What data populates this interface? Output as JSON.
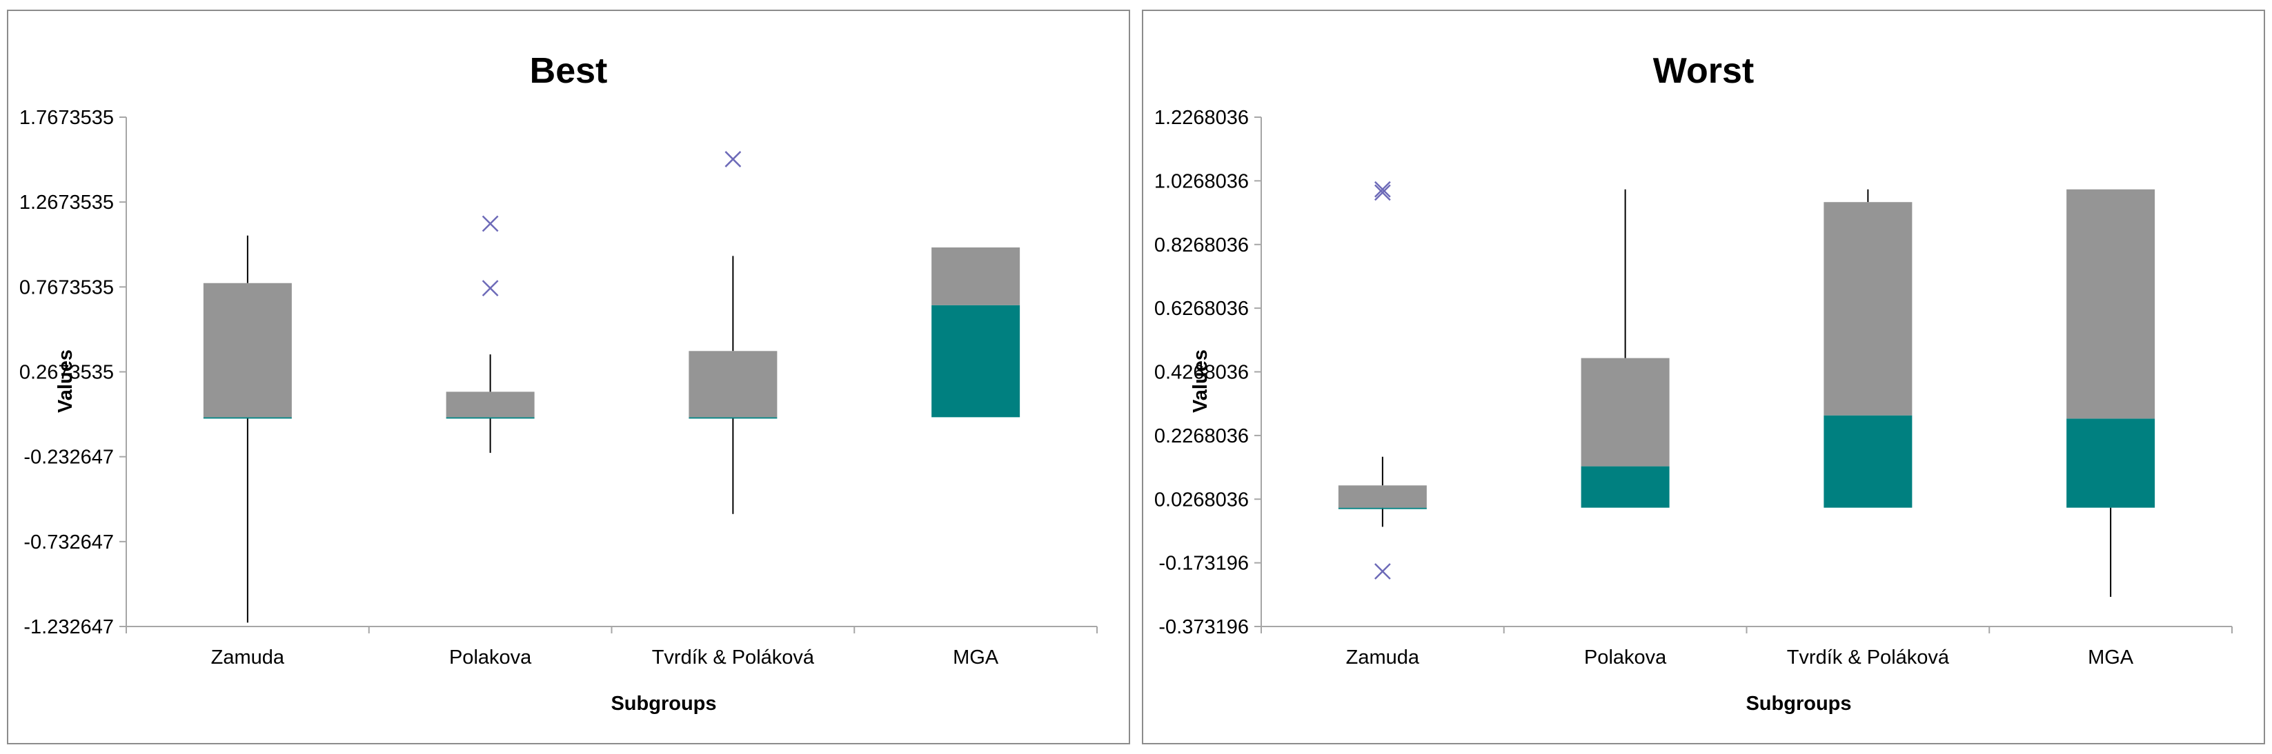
{
  "colors": {
    "upper_box": "#959595",
    "lower_box": "#008080",
    "outlier": "#6d6ab8",
    "whisker": "#000000",
    "axis": "#a6a6a6"
  },
  "chart_data": [
    {
      "type": "boxplot",
      "title": "Best",
      "xlabel": "Subgroups",
      "ylabel": "Values",
      "ylim": [
        -1.232647,
        1.7673535
      ],
      "ytick_labels": [
        "1.7673535",
        "1.2673535",
        "0.7673535",
        "0.2673535",
        "-0.232647",
        "-0.732647",
        "-1.232647"
      ],
      "categories": [
        "Zamuda",
        "Polakova",
        "Tvrdík & Poláková",
        "MGA"
      ],
      "boxes": [
        {
          "whisker_low": -1.21,
          "q1": 0.0,
          "median": 0.0,
          "q3": 0.79,
          "whisker_high": 1.07,
          "outliers": []
        },
        {
          "whisker_low": -0.21,
          "q1": 0.0,
          "median": 0.0,
          "q3": 0.15,
          "whisker_high": 0.37,
          "outliers": [
            1.14,
            0.76
          ]
        },
        {
          "whisker_low": -0.57,
          "q1": 0.0,
          "median": 0.0,
          "q3": 0.39,
          "whisker_high": 0.95,
          "outliers": [
            1.52
          ]
        },
        {
          "whisker_low": 0.0,
          "q1": 0.0,
          "median": 0.66,
          "q3": 1.0,
          "whisker_high": 1.0,
          "outliers": []
        }
      ]
    },
    {
      "type": "boxplot",
      "title": "Worst",
      "xlabel": "Subgroups",
      "ylabel": "Values",
      "ylim": [
        -0.373196,
        1.2268036
      ],
      "ytick_labels": [
        "1.2268036",
        "1.0268036",
        "0.8268036",
        "0.6268036",
        "0.4268036",
        "0.2268036",
        "0.0268036",
        "-0.173196",
        "-0.373196"
      ],
      "categories": [
        "Zamuda",
        "Polakova",
        "Tvrdík & Poláková",
        "MGA"
      ],
      "boxes": [
        {
          "whisker_low": -0.06,
          "q1": 0.0,
          "median": 0.0,
          "q3": 0.07,
          "whisker_high": 0.16,
          "outliers": [
            1.0,
            0.99,
            -0.2
          ]
        },
        {
          "whisker_low": 0.0,
          "q1": 0.0,
          "median": 0.13,
          "q3": 0.47,
          "whisker_high": 1.0,
          "outliers": []
        },
        {
          "whisker_low": 0.0,
          "q1": 0.0,
          "median": 0.29,
          "q3": 0.96,
          "whisker_high": 1.0,
          "outliers": []
        },
        {
          "whisker_low": -0.28,
          "q1": 0.0,
          "median": 0.28,
          "q3": 1.0,
          "whisker_high": 1.0,
          "outliers": []
        }
      ]
    }
  ]
}
